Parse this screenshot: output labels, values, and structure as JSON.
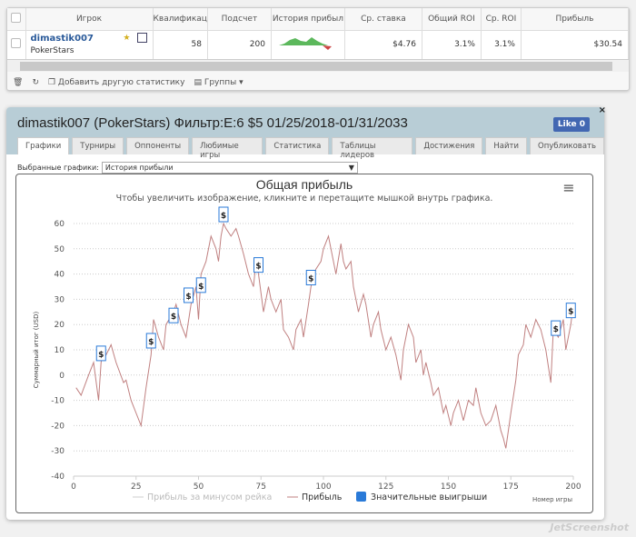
{
  "table": {
    "headers": [
      "Игрок",
      "Квалификац",
      "Подсчет",
      "История прибыл",
      "Ср. ставка",
      "Общий ROI",
      "Ср. ROI",
      "Прибыль"
    ],
    "row": {
      "player": "dimastik007",
      "site": "PokerStars",
      "qual": "58",
      "count": "200",
      "avg_stake": "$4.76",
      "total_roi": "3.1%",
      "avg_roi": "3.1%",
      "profit": "$30.54"
    }
  },
  "footer": {
    "add_stat": "Добавить другую статистику",
    "groups": "Группы"
  },
  "panel": {
    "title": "dimastik007 (PokerStars) Фильтр:E:6 $5 01/25/2018-01/31/2033",
    "like": "Like 0",
    "close": "×",
    "tabs": [
      "Графики",
      "Турниры",
      "Оппоненты",
      "Любимые игры",
      "Статистика",
      "Таблицы лидеров",
      "Достижения",
      "Найти",
      "Опубликовать"
    ],
    "selected_label": "Выбранные графики:",
    "selected_value": "История прибыли"
  },
  "chart_data": {
    "type": "line",
    "title": "Общая прибыль",
    "subtitle": "Чтобы увеличить изображение, кликните и перетащите мышкой внутрь графика.",
    "xlabel": "Номер игры",
    "ylabel": "Суммарный итог (USD)",
    "xlim": [
      0,
      200
    ],
    "ylim": [
      -40,
      60
    ],
    "xticks": [
      0,
      25,
      50,
      75,
      100,
      125,
      150,
      175,
      200
    ],
    "yticks": [
      -40,
      -30,
      -20,
      -10,
      0,
      10,
      20,
      30,
      40,
      50,
      60
    ],
    "legend": [
      "Прибыль за минусом рейка",
      "Прибыль",
      "Значительные выигрыши"
    ],
    "line_color": "#c08080",
    "marker_color": "#2a7ad8",
    "marker_label": "$",
    "series": [
      {
        "name": "Прибыль",
        "x": [
          1,
          3,
          6,
          8,
          10,
          11,
          12,
          13,
          15,
          17,
          20,
          21,
          23,
          25,
          27,
          29,
          31,
          32,
          34,
          36,
          37,
          40,
          41,
          43,
          45,
          47,
          49,
          50,
          51,
          53,
          55,
          57,
          58,
          59,
          60,
          61,
          63,
          65,
          66,
          68,
          70,
          72,
          73,
          74,
          76,
          78,
          79,
          81,
          83,
          84,
          86,
          88,
          89,
          91,
          92,
          94,
          95,
          97,
          99,
          100,
          102,
          104,
          105,
          107,
          108,
          109,
          111,
          112,
          114,
          116,
          117,
          119,
          120,
          122,
          123,
          125,
          127,
          129,
          131,
          132,
          134,
          136,
          137,
          139,
          140,
          141,
          143,
          144,
          146,
          148,
          149,
          151,
          152,
          154,
          156,
          158,
          160,
          161,
          163,
          165,
          167,
          169,
          171,
          172,
          173,
          175,
          177,
          178,
          180,
          181,
          183,
          185,
          187,
          189,
          191,
          192,
          194,
          196,
          197,
          199,
          200
        ],
        "y": [
          -5,
          -8,
          0,
          5,
          -10,
          5,
          10,
          8,
          12,
          5,
          -3,
          -2,
          -10,
          -15,
          -20,
          -5,
          8,
          22,
          15,
          10,
          20,
          25,
          28,
          20,
          15,
          28,
          35,
          22,
          40,
          45,
          55,
          50,
          45,
          55,
          60,
          58,
          55,
          58,
          55,
          48,
          40,
          35,
          45,
          40,
          25,
          35,
          30,
          25,
          30,
          18,
          15,
          10,
          18,
          22,
          15,
          28,
          35,
          42,
          45,
          50,
          55,
          45,
          40,
          52,
          45,
          42,
          45,
          35,
          25,
          32,
          28,
          15,
          20,
          25,
          18,
          10,
          15,
          8,
          -2,
          10,
          20,
          15,
          5,
          10,
          0,
          5,
          -3,
          -8,
          -5,
          -15,
          -12,
          -20,
          -15,
          -10,
          -18,
          -10,
          -12,
          -5,
          -15,
          -20,
          -18,
          -12,
          -22,
          -25,
          -29,
          -15,
          -2,
          8,
          12,
          20,
          15,
          22,
          18,
          10,
          -3,
          18,
          15,
          22,
          10,
          20,
          28
        ]
      }
    ],
    "big_wins": {
      "x": [
        11,
        31,
        40,
        46,
        51,
        60,
        74,
        95,
        193,
        199
      ],
      "y": [
        5,
        10,
        20,
        28,
        32,
        60,
        40,
        35,
        15,
        22
      ]
    }
  }
}
